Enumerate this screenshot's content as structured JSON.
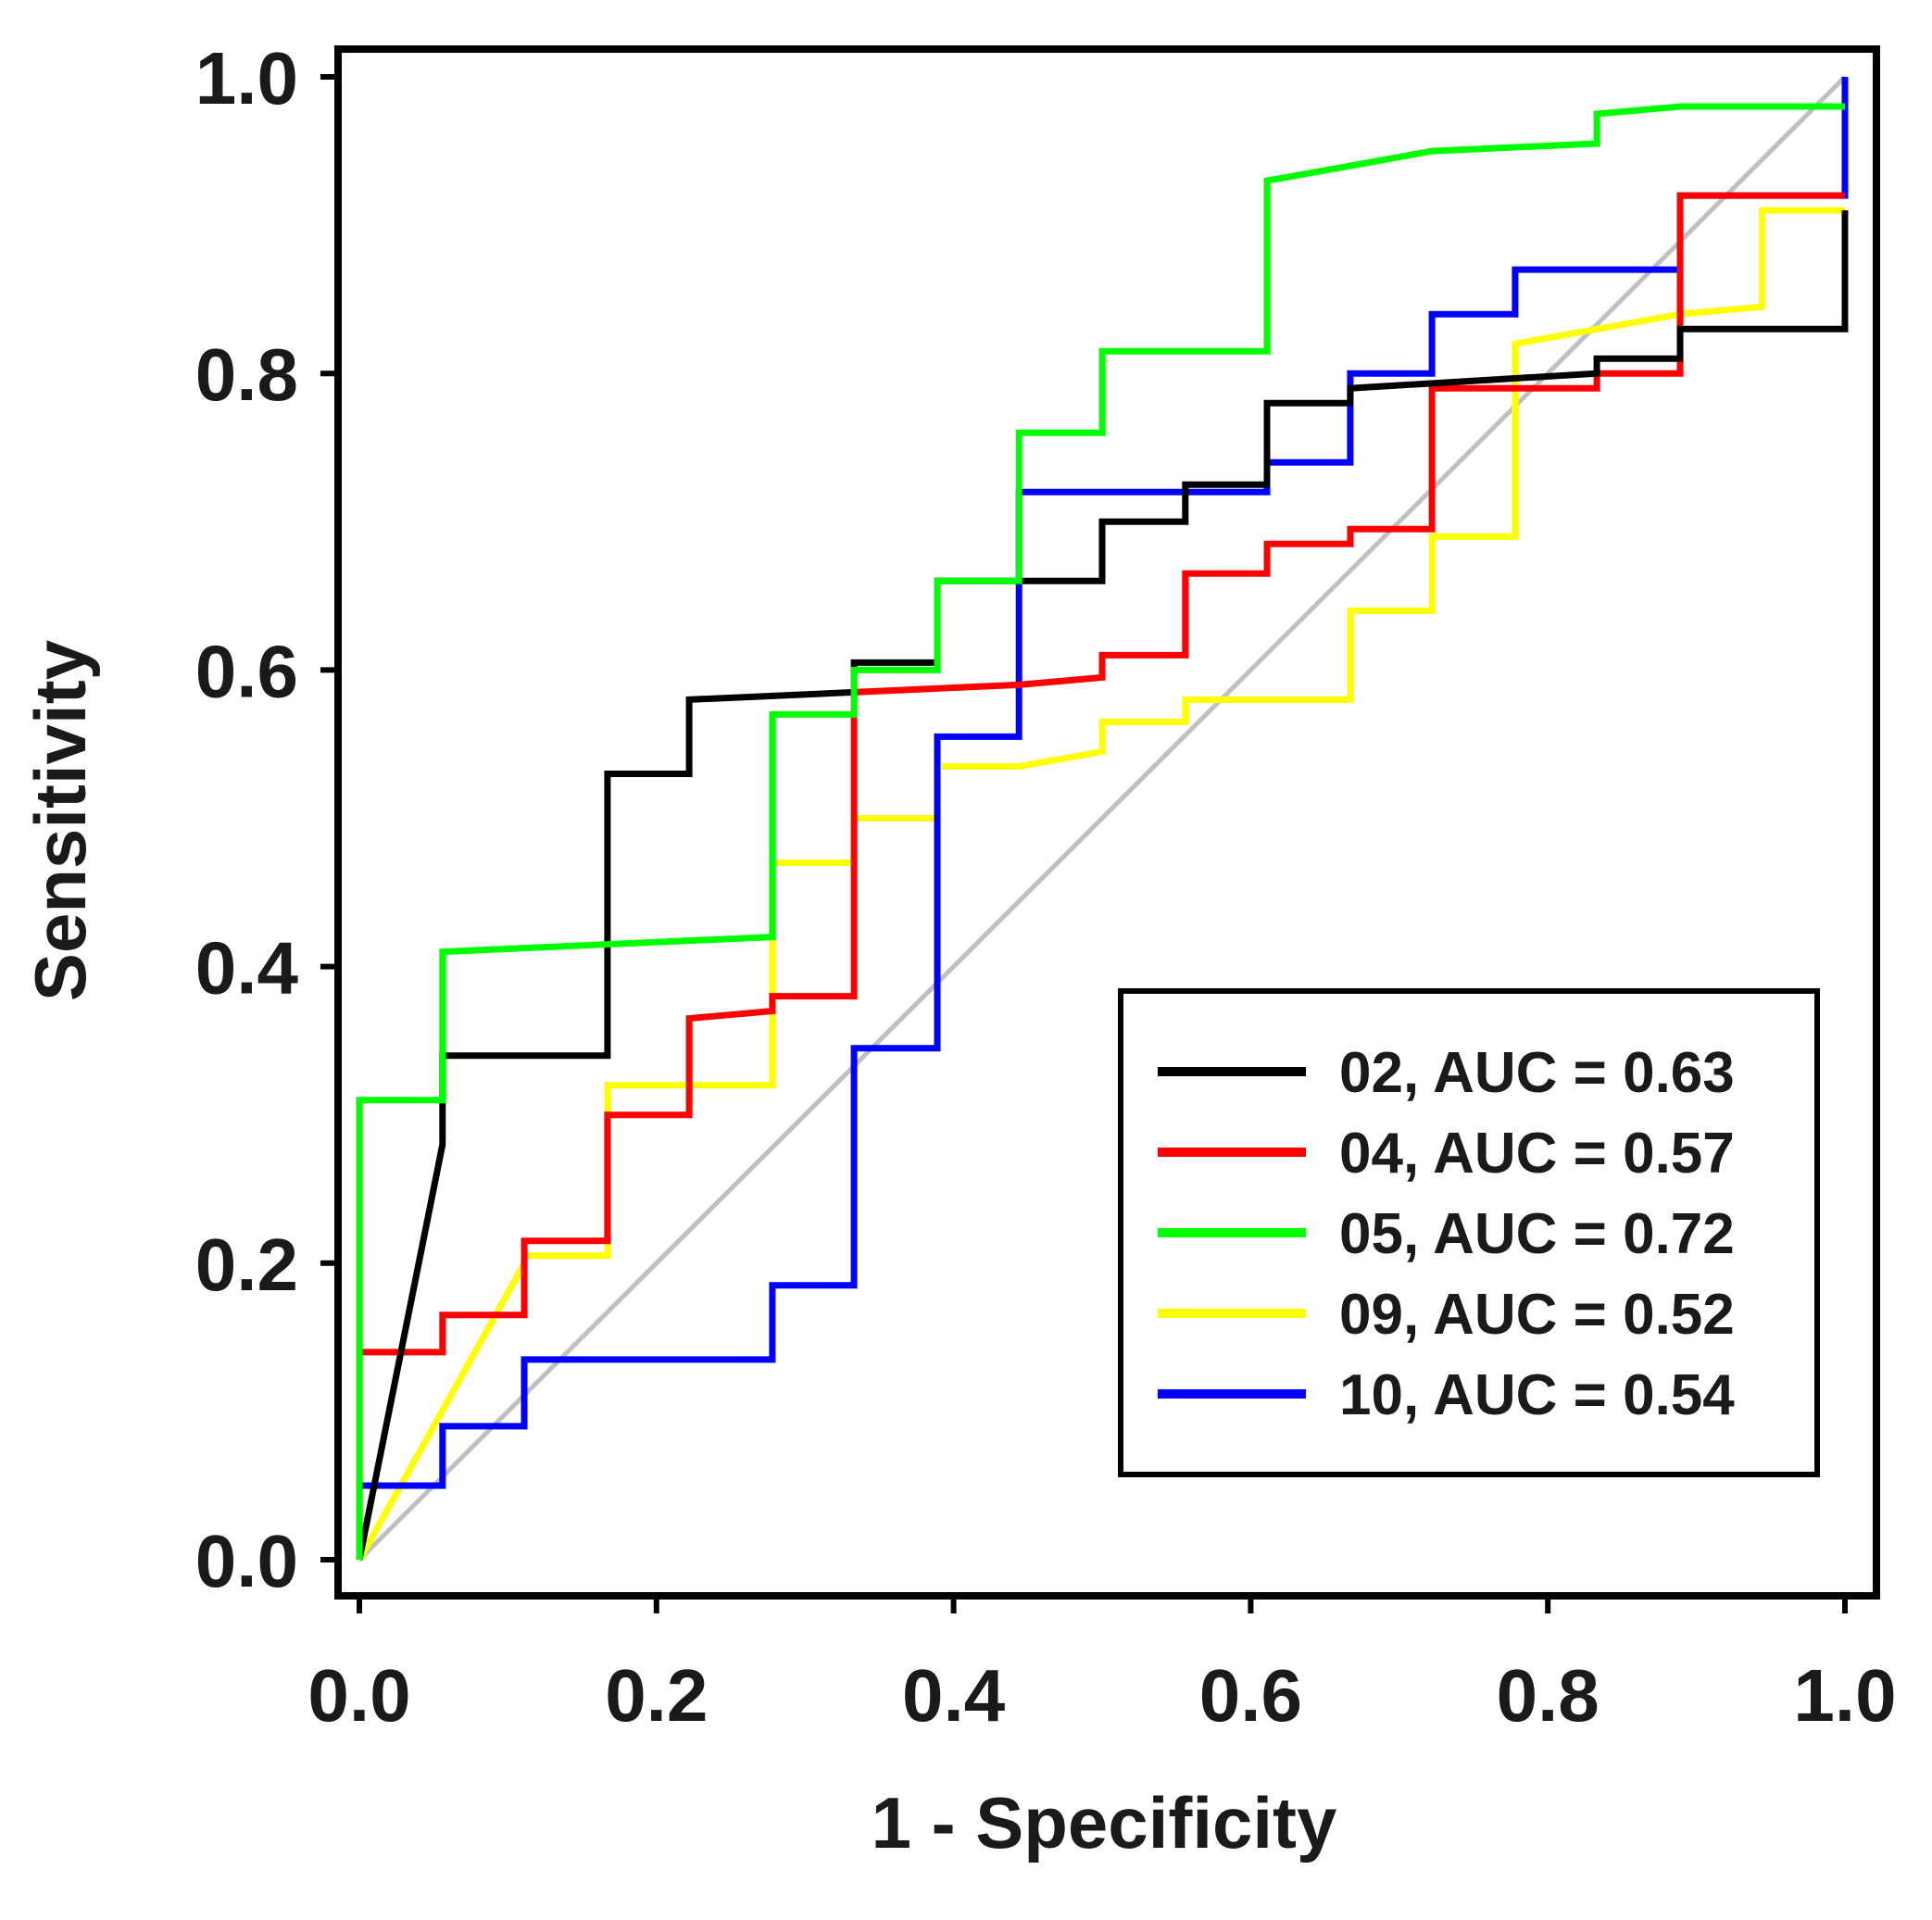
{
  "chart_data": {
    "type": "line",
    "title": "",
    "xlabel": "1 - Specificity",
    "ylabel": "Sensitivity",
    "xlim": [
      0,
      1
    ],
    "ylim": [
      0,
      1
    ],
    "xticks": [
      "0.0",
      "0.2",
      "0.4",
      "0.6",
      "0.8",
      "1.0"
    ],
    "yticks": [
      "0.0",
      "0.2",
      "0.4",
      "0.6",
      "0.8",
      "1.0"
    ],
    "legend_position": "bottom-right",
    "reference_line": {
      "name": "chance",
      "color": "#c0c0c0",
      "x": [
        0,
        1
      ],
      "y": [
        0,
        1
      ]
    },
    "series": [
      {
        "name": "02",
        "auc": "0.63",
        "legend": "02, AUC = 0.63",
        "color": "#000000",
        "x": [
          0.0,
          0.056,
          0.056,
          0.167,
          0.167,
          0.222,
          0.222,
          0.333,
          0.333,
          0.389,
          0.389,
          0.5,
          0.5,
          0.556,
          0.556,
          0.611,
          0.611,
          0.667,
          0.667,
          0.833,
          0.833,
          0.889,
          0.889,
          1.0,
          1.0
        ],
        "y": [
          0.0,
          0.28,
          0.34,
          0.34,
          0.53,
          0.53,
          0.58,
          0.585,
          0.605,
          0.605,
          0.66,
          0.66,
          0.7,
          0.7,
          0.725,
          0.725,
          0.78,
          0.78,
          0.79,
          0.8,
          0.81,
          0.81,
          0.83,
          0.83,
          0.91
        ]
      },
      {
        "name": "04",
        "auc": "0.57",
        "legend": "04, AUC = 0.57",
        "color": "#ff0000",
        "x": [
          0.0,
          0.0,
          0.056,
          0.056,
          0.111,
          0.111,
          0.167,
          0.167,
          0.222,
          0.222,
          0.278,
          0.278,
          0.333,
          0.333,
          0.444,
          0.5,
          0.5,
          0.556,
          0.556,
          0.611,
          0.611,
          0.667,
          0.667,
          0.722,
          0.722,
          0.833,
          0.833,
          0.889,
          0.889,
          1.0
        ],
        "y": [
          0.0,
          0.14,
          0.14,
          0.165,
          0.165,
          0.215,
          0.215,
          0.3,
          0.3,
          0.365,
          0.37,
          0.38,
          0.38,
          0.585,
          0.59,
          0.595,
          0.61,
          0.61,
          0.665,
          0.665,
          0.685,
          0.685,
          0.695,
          0.695,
          0.79,
          0.79,
          0.8,
          0.8,
          0.92,
          0.92
        ]
      },
      {
        "name": "05",
        "auc": "0.72",
        "legend": "05, AUC = 0.72",
        "color": "#00ff00",
        "x": [
          0.0,
          0.0,
          0.056,
          0.056,
          0.278,
          0.278,
          0.333,
          0.333,
          0.389,
          0.389,
          0.444,
          0.444,
          0.5,
          0.5,
          0.611,
          0.611,
          0.667,
          0.722,
          0.833,
          0.833,
          0.889,
          1.0
        ],
        "y": [
          0.0,
          0.31,
          0.31,
          0.41,
          0.42,
          0.57,
          0.57,
          0.6,
          0.6,
          0.66,
          0.66,
          0.76,
          0.76,
          0.815,
          0.815,
          0.93,
          0.94,
          0.95,
          0.955,
          0.975,
          0.98,
          0.98
        ]
      },
      {
        "name": "09",
        "auc": "0.52",
        "legend": "09, AUC = 0.52",
        "color": "#ffff00",
        "x": [
          0.0,
          0.111,
          0.111,
          0.167,
          0.167,
          0.278,
          0.278,
          0.333,
          0.333,
          0.389,
          0.389,
          0.444,
          0.5,
          0.5,
          0.556,
          0.556,
          0.667,
          0.667,
          0.722,
          0.722,
          0.778,
          0.778,
          0.889,
          0.944,
          0.944,
          1.0
        ],
        "y": [
          0.0,
          0.2,
          0.205,
          0.205,
          0.32,
          0.32,
          0.47,
          0.47,
          0.5,
          0.5,
          0.535,
          0.535,
          0.545,
          0.565,
          0.565,
          0.58,
          0.58,
          0.64,
          0.64,
          0.69,
          0.69,
          0.82,
          0.84,
          0.845,
          0.91,
          0.91
        ]
      },
      {
        "name": "10",
        "auc": "0.54",
        "legend": "10, AUC = 0.54",
        "color": "#0000ff",
        "x": [
          0.0,
          0.0,
          0.056,
          0.056,
          0.111,
          0.111,
          0.278,
          0.278,
          0.333,
          0.333,
          0.389,
          0.389,
          0.444,
          0.444,
          0.611,
          0.611,
          0.667,
          0.667,
          0.722,
          0.722,
          0.778,
          0.778,
          0.889,
          0.889,
          1.0,
          1.0
        ],
        "y": [
          0.0,
          0.05,
          0.05,
          0.09,
          0.09,
          0.135,
          0.135,
          0.185,
          0.185,
          0.345,
          0.345,
          0.555,
          0.555,
          0.72,
          0.72,
          0.74,
          0.74,
          0.8,
          0.8,
          0.84,
          0.84,
          0.87,
          0.87,
          0.92,
          0.92,
          1.0
        ]
      }
    ]
  }
}
